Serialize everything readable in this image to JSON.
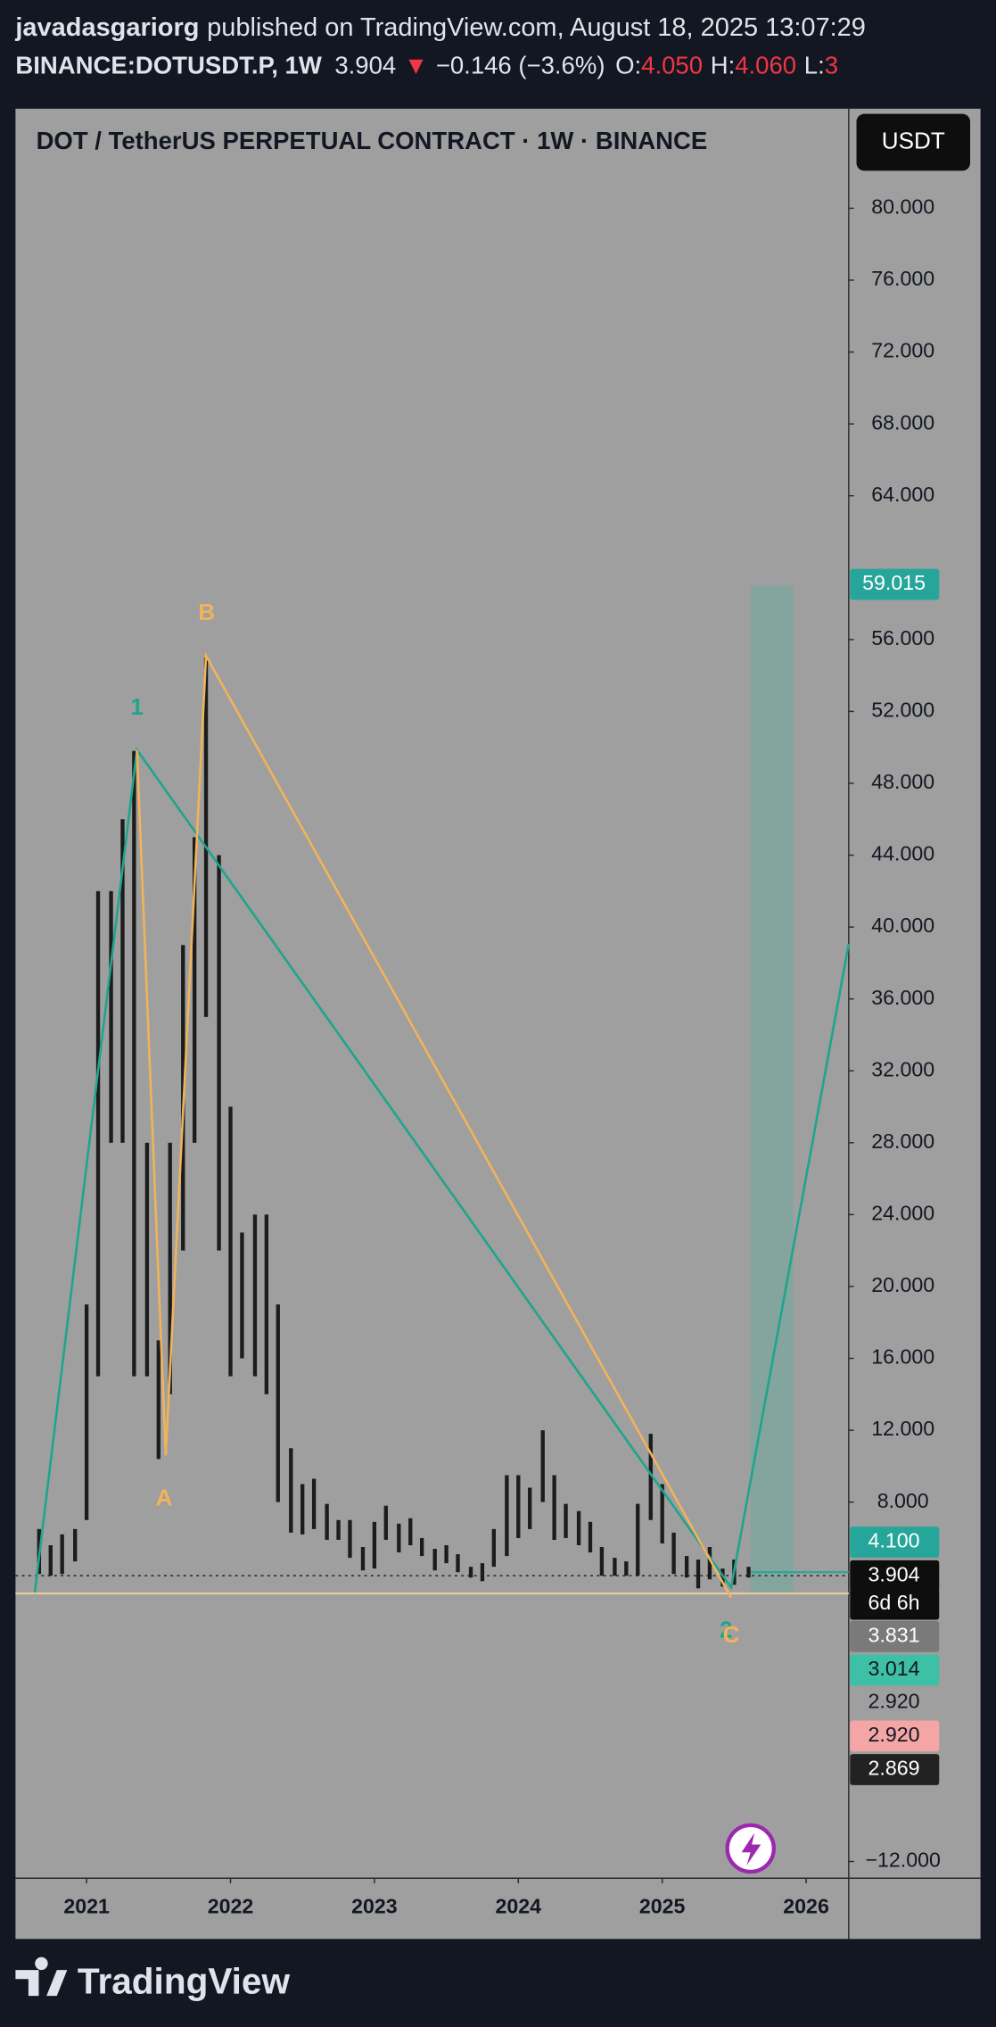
{
  "header": {
    "author": "javadasgariorg",
    "published": "published on TradingView.com, August 18, 2025 13:07:29",
    "symbol": "BINANCE:DOTUSDT.P, 1W",
    "price": "3.904",
    "arrow": "▼",
    "change": "−0.146 (−3.6%)",
    "open_label": "O:",
    "open": "4.050",
    "high_label": "H:",
    "high": "4.060",
    "low_label": "L:",
    "low": "3"
  },
  "chart_data": {
    "type": "range_bar",
    "title": "DOT / TetherUS PERPETUAL CONTRACT · 1W · BINANCE",
    "currency": "USDT",
    "x": [
      2020.67,
      2020.75,
      2020.83,
      2020.92,
      2021.0,
      2021.08,
      2021.17,
      2021.25,
      2021.33,
      2021.42,
      2021.5,
      2021.58,
      2021.67,
      2021.75,
      2021.83,
      2021.92,
      2022.0,
      2022.08,
      2022.17,
      2022.25,
      2022.33,
      2022.42,
      2022.5,
      2022.58,
      2022.67,
      2022.75,
      2022.83,
      2022.92,
      2023.0,
      2023.08,
      2023.17,
      2023.25,
      2023.33,
      2023.42,
      2023.5,
      2023.58,
      2023.67,
      2023.75,
      2023.83,
      2023.92,
      2024.0,
      2024.08,
      2024.17,
      2024.25,
      2024.33,
      2024.42,
      2024.5,
      2024.58,
      2024.67,
      2024.75,
      2024.83,
      2024.92,
      2025.0,
      2025.08,
      2025.17,
      2025.25,
      2025.33,
      2025.42,
      2025.5,
      2025.6
    ],
    "low": [
      4.0,
      3.9,
      4.0,
      4.7,
      7,
      15,
      28,
      28,
      15,
      15,
      10.4,
      14,
      22,
      28,
      35,
      22,
      15,
      16,
      15,
      14,
      8,
      6.3,
      6.2,
      6.5,
      5.9,
      5.9,
      4.9,
      4.2,
      4.3,
      5.9,
      5.2,
      5.6,
      5.0,
      4.2,
      4.6,
      4.1,
      3.8,
      3.6,
      4.4,
      5.0,
      6.0,
      6.5,
      8.0,
      5.9,
      6.0,
      5.6,
      5.2,
      3.9,
      3.9,
      3.9,
      3.9,
      7.0,
      5.7,
      4.0,
      3.8,
      3.2,
      3.7,
      3.3,
      3.4,
      3.8
    ],
    "high": [
      6.5,
      5.6,
      6.2,
      6.5,
      19,
      42,
      42,
      46,
      49.8,
      28,
      17,
      28,
      39,
      45,
      55,
      44,
      30,
      23,
      24,
      24,
      19,
      11,
      9,
      9.3,
      7.9,
      7.0,
      7.0,
      5.5,
      6.9,
      7.8,
      6.8,
      7.1,
      6.0,
      5.4,
      5.6,
      5.1,
      4.4,
      4.6,
      6.5,
      9.5,
      9.5,
      8.8,
      12.0,
      9.5,
      7.9,
      7.5,
      6.9,
      5.5,
      4.9,
      4.7,
      7.9,
      11.8,
      9.0,
      6.3,
      5.0,
      4.8,
      5.5,
      4.3,
      4.8,
      4.4
    ],
    "bar_color": "#1c1c1c",
    "xlim": [
      2020.506,
      2026.296
    ],
    "xticks": [
      2021,
      2022,
      2023,
      2024,
      2025,
      2026
    ],
    "ylim": [
      -12.93,
      85.54
    ],
    "yticks": [
      {
        "value": 80,
        "label": "80.000"
      },
      {
        "value": 76,
        "label": "76.000"
      },
      {
        "value": 72,
        "label": "72.000"
      },
      {
        "value": 68,
        "label": "68.000"
      },
      {
        "value": 64,
        "label": "64.000"
      },
      {
        "value": 56,
        "label": "56.000"
      },
      {
        "value": 52,
        "label": "52.000"
      },
      {
        "value": 48,
        "label": "48.000"
      },
      {
        "value": 44,
        "label": "44.000"
      },
      {
        "value": 40,
        "label": "40.000"
      },
      {
        "value": 36,
        "label": "36.000"
      },
      {
        "value": 32,
        "label": "32.000"
      },
      {
        "value": 28,
        "label": "28.000"
      },
      {
        "value": 24,
        "label": "24.000"
      },
      {
        "value": 20,
        "label": "20.000"
      },
      {
        "value": 16,
        "label": "16.000"
      },
      {
        "value": 12,
        "label": "12.000"
      },
      {
        "value": 8,
        "label": "8.000"
      },
      {
        "value": -12,
        "label": "−12.000"
      }
    ],
    "waves": [
      {
        "color": "#1fa58c",
        "x": [
          2020.64,
          2021.35,
          2025.479,
          2026.296
        ],
        "y": [
          2.97,
          49.86,
          3.25,
          39.07
        ]
      },
      {
        "color": "#f0b35a",
        "x": [
          2021.35,
          2021.55,
          2021.83,
          2025.479
        ],
        "y": [
          49.86,
          10.6,
          55.1,
          2.68
        ]
      }
    ],
    "wave_labels": [
      {
        "text": "1",
        "color": "#1fa58c"
      },
      {
        "text": "B",
        "color": "#f0b35a"
      },
      {
        "text": "A",
        "color": "#f0b35a"
      },
      {
        "text": "2",
        "color": "#1fa58c"
      },
      {
        "text": "C",
        "color": "#f0b35a"
      }
    ],
    "target_zone": {
      "x": [
        2025.614,
        2025.91
      ],
      "top": 59.015,
      "bottom": 2.97,
      "color": "#7fa59d"
    },
    "levels": [
      {
        "value": 4.1,
        "start": 2025.614,
        "color": "#26a69a",
        "style": "solid"
      },
      {
        "value": 3.904,
        "start": 2020.506,
        "color": "#222222",
        "style": "dotted"
      },
      {
        "value": 2.92,
        "start": 2020.506,
        "color": "#e8c9a0",
        "style": "solid"
      }
    ],
    "price_labels": [
      {
        "label": "59.015",
        "bg": "#26a69a",
        "fg": "#ffffff"
      },
      {
        "label": "4.100",
        "bg": "#26a69a",
        "fg": "#ffffff"
      },
      {
        "label": "3.904",
        "bg": "#0e0e0e",
        "fg": "#ffffff"
      },
      {
        "label": "6d 6h",
        "bg": "#0e0e0e",
        "fg": "#ffffff"
      },
      {
        "label": "3.831",
        "bg": "#7a7a7a",
        "fg": "#ffffff"
      },
      {
        "label": "3.014",
        "bg": "#3ec0a6",
        "fg": "#131722"
      },
      {
        "label": "2.920",
        "bg": "none",
        "fg": "#131722"
      },
      {
        "label": "2.920",
        "bg": "#f4a5a5",
        "fg": "#131722"
      },
      {
        "label": "2.869",
        "bg": "#222222",
        "fg": "#ffffff"
      }
    ]
  },
  "footer": {
    "brand": "TradingView"
  }
}
